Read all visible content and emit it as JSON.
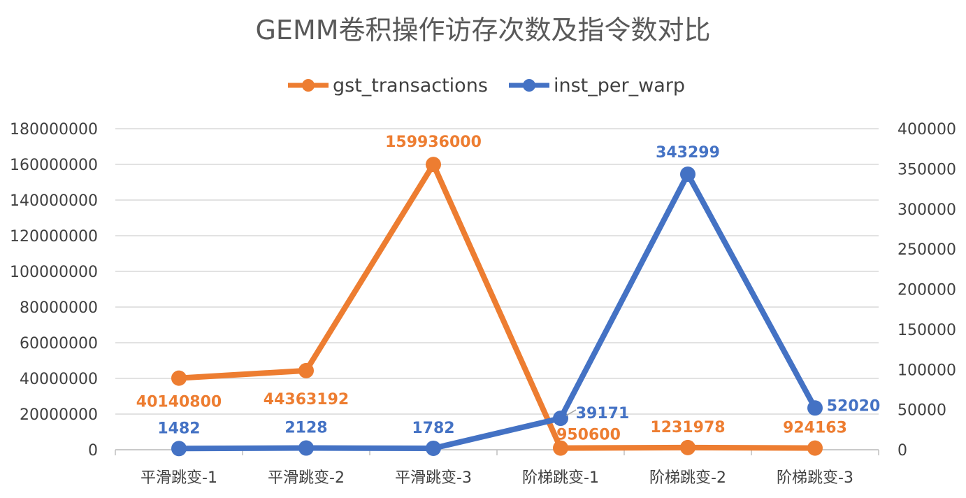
{
  "chart_data": {
    "type": "line",
    "title": "GEMM卷积操作访存次数及指令数对比",
    "categories": [
      "平滑跳变-1",
      "平滑跳变-2",
      "平滑跳变-3",
      "阶梯跳变-1",
      "阶梯跳变-2",
      "阶梯跳变-3"
    ],
    "series": [
      {
        "name": "gst_transactions",
        "axis": "left",
        "color": "#ED7D31",
        "values": [
          40140800,
          44363192,
          159936000,
          950600,
          1231978,
          924163
        ],
        "labels": [
          "40140800",
          "44363192",
          "159936000",
          "950600",
          "1231978",
          "924163"
        ]
      },
      {
        "name": "inst_per_warp",
        "axis": "right",
        "color": "#4472C4",
        "values": [
          1482,
          2128,
          1782,
          39171,
          343299,
          52020
        ],
        "labels": [
          "1482",
          "2128",
          "1782",
          "39171",
          "343299",
          "52020"
        ]
      }
    ],
    "y_left": {
      "ylim": [
        0,
        180000000
      ],
      "ticks": [
        "0",
        "20000000",
        "40000000",
        "60000000",
        "80000000",
        "100000000",
        "120000000",
        "140000000",
        "160000000",
        "180000000"
      ]
    },
    "y_right": {
      "ylim": [
        0,
        400000
      ],
      "ticks": [
        "0",
        "50000",
        "100000",
        "150000",
        "200000",
        "250000",
        "300000",
        "350000",
        "400000"
      ]
    },
    "grid": true,
    "legend_position": "top"
  }
}
